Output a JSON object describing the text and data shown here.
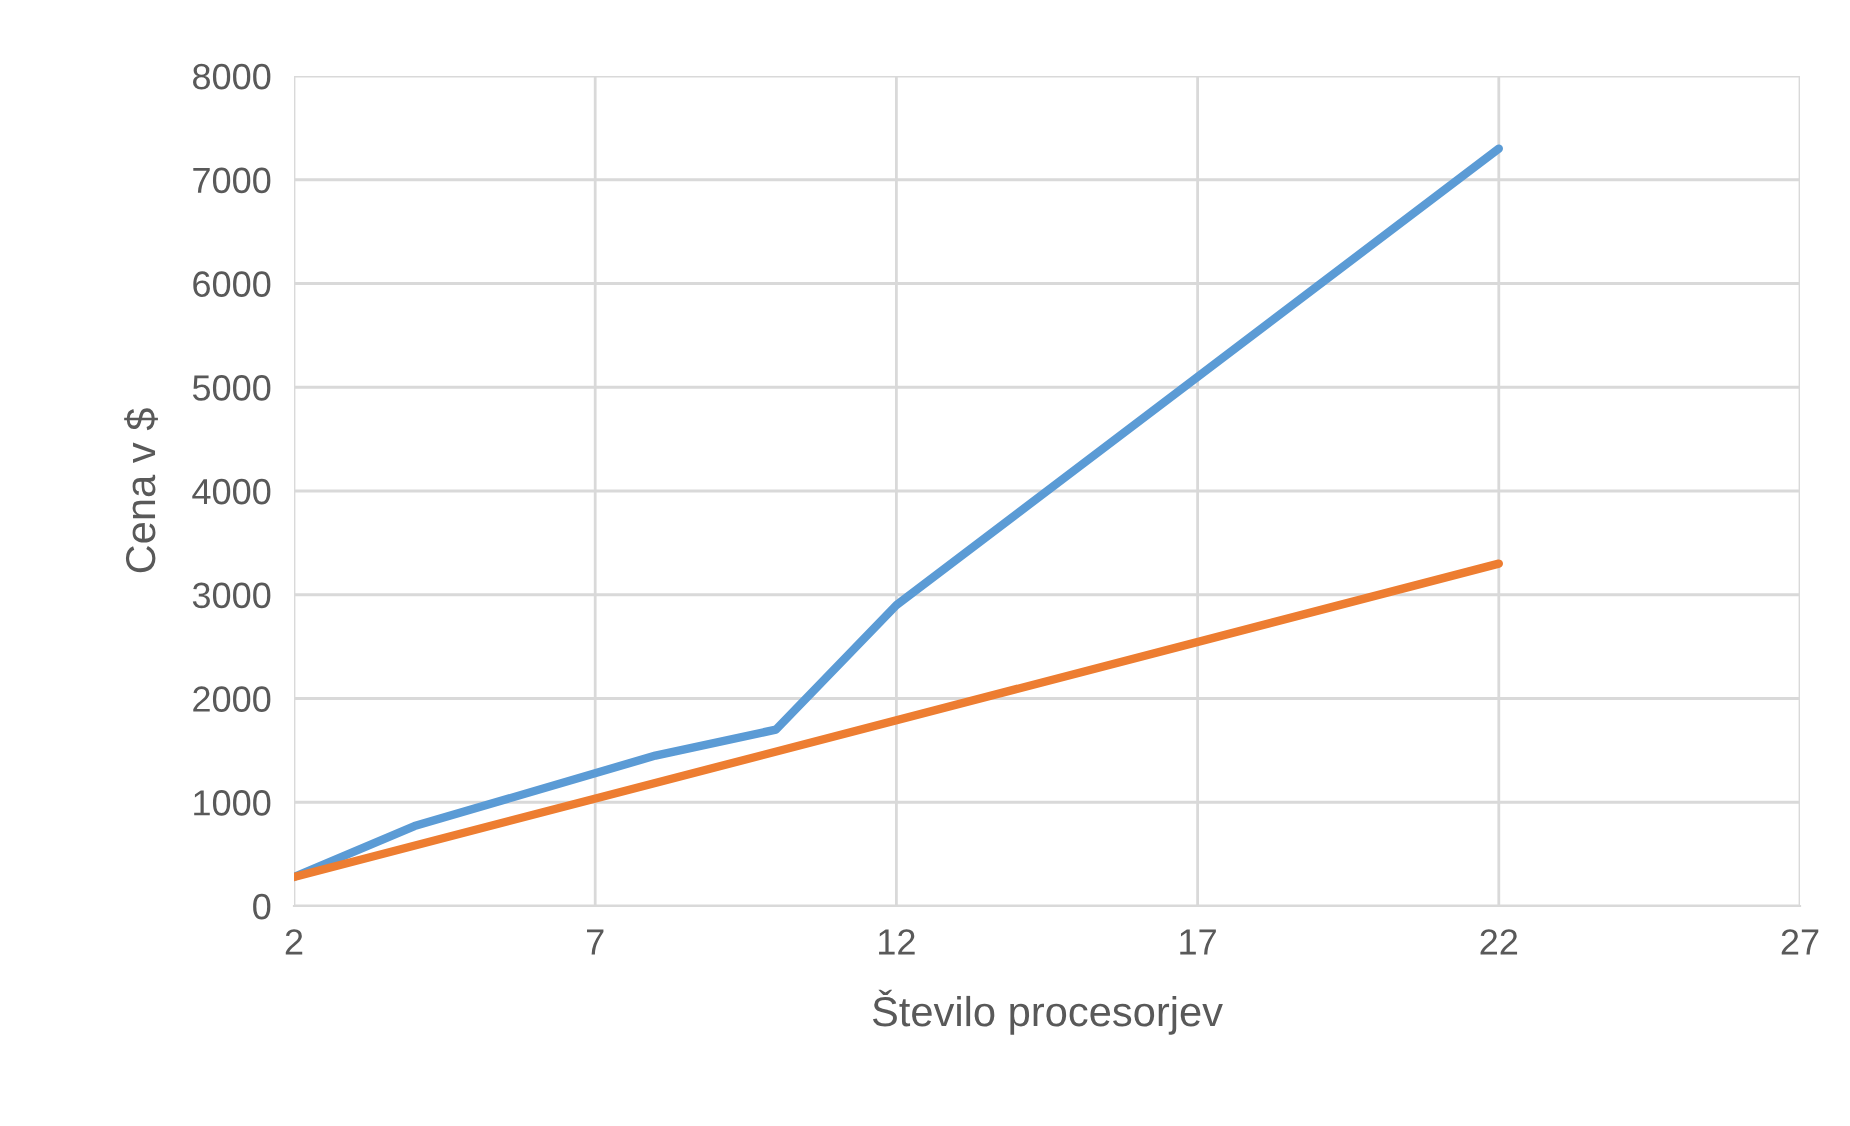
{
  "chart_data": {
    "type": "line",
    "xlabel": "Število procesorjev",
    "ylabel": "Cena v $",
    "series": [
      {
        "color": "#5b9bd5",
        "x": [
          2,
          4,
          8,
          10,
          12,
          22
        ],
        "values": [
          280,
          770,
          1450,
          1700,
          2900,
          7300
        ]
      },
      {
        "color": "#ed7d31",
        "x": [
          2,
          22
        ],
        "values": [
          280,
          3300
        ]
      }
    ],
    "xlim": [
      2,
      27
    ],
    "xticks": [
      2,
      7,
      12,
      17,
      22,
      27
    ],
    "ylim": [
      0,
      8000
    ],
    "yticks": [
      0,
      1000,
      2000,
      3000,
      4000,
      5000,
      6000,
      7000,
      8000
    ],
    "grid": true,
    "marker": "none",
    "line_style": "solid"
  }
}
